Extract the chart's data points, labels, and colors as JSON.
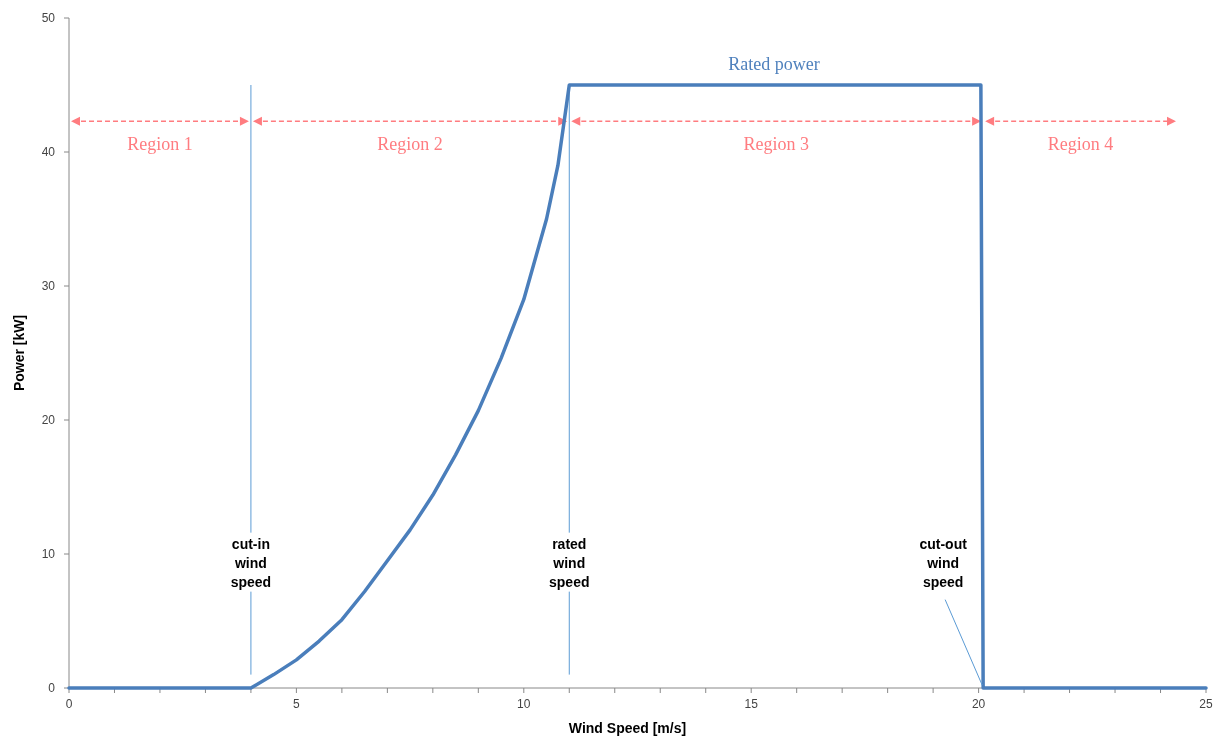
{
  "chart_data": {
    "type": "line",
    "xlabel": "Wind Speed [m/s]",
    "ylabel": "Power [kW]",
    "xlim": [
      0,
      25
    ],
    "ylim": [
      0,
      50
    ],
    "xticks": [
      0,
      {
        "value": 1,
        "label": null
      },
      {
        "value": 2,
        "label": null
      },
      {
        "value": 3,
        "label": null
      },
      {
        "value": 4,
        "label": null
      },
      5,
      {
        "value": 6,
        "label": null
      },
      {
        "value": 7,
        "label": null
      },
      {
        "value": 8,
        "label": null
      },
      {
        "value": 9,
        "label": null
      },
      10,
      {
        "value": 11,
        "label": null
      },
      {
        "value": 12,
        "label": null
      },
      {
        "value": 13,
        "label": null
      },
      {
        "value": 14,
        "label": null
      },
      15,
      {
        "value": 16,
        "label": null
      },
      {
        "value": 17,
        "label": null
      },
      {
        "value": 18,
        "label": null
      },
      {
        "value": 19,
        "label": null
      },
      20,
      {
        "value": 21,
        "label": null
      },
      {
        "value": 22,
        "label": null
      },
      {
        "value": 23,
        "label": null
      },
      {
        "value": 24,
        "label": null
      },
      25
    ],
    "yticks": [
      0,
      10,
      20,
      30,
      40,
      50
    ],
    "series": [
      {
        "color": "#4a7ebb",
        "x": [
          0,
          4,
          4.5,
          5,
          5.5,
          6,
          6.5,
          7,
          7.5,
          8,
          8.5,
          9,
          9.5,
          10,
          10.5,
          10.75,
          11,
          20.05,
          20.1,
          25
        ],
        "values": [
          0,
          0,
          1,
          2.1,
          3.5,
          5.1,
          7.2,
          9.5,
          11.8,
          14.4,
          17.4,
          20.7,
          24.6,
          29,
          35,
          39,
          45,
          45,
          0,
          0
        ]
      }
    ],
    "marker": "none",
    "line_style": "solid",
    "ref_lines": [
      {
        "axis": "x",
        "value": 4,
        "label": "cut-in wind speed",
        "color": "#5b9bd5"
      },
      {
        "axis": "x",
        "value": 11,
        "label": "rated wind speed",
        "color": "#5b9bd5"
      }
    ],
    "annotations": [
      "Region 1",
      "Region 2",
      "Region 3",
      "Region 4",
      {
        "text": "Rated power",
        "x": 15.5,
        "y": 45
      },
      {
        "text": "cut-out wind speed",
        "x": 20.1,
        "y": 0
      }
    ]
  }
}
